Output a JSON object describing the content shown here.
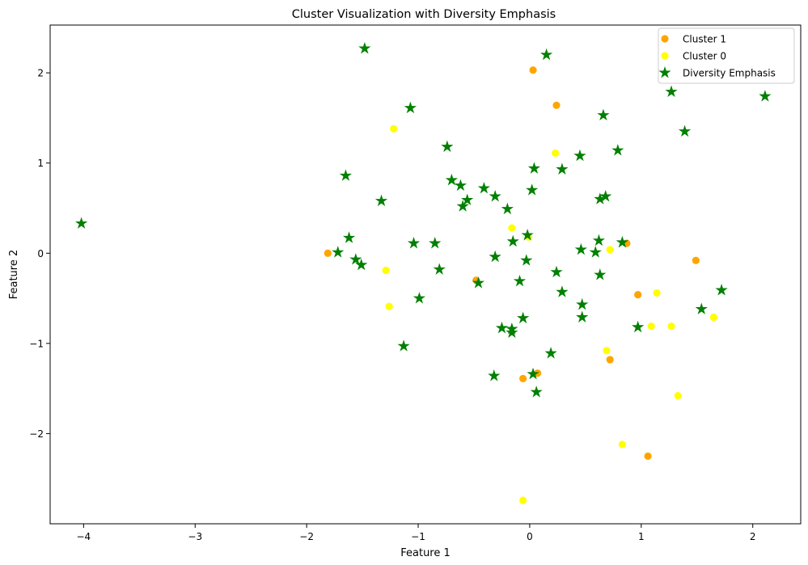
{
  "chart_data": {
    "type": "scatter",
    "title": "Cluster Visualization with Diversity Emphasis",
    "xlabel": "Feature 1",
    "ylabel": "Feature 2",
    "xlim": [
      -4.3,
      2.43
    ],
    "ylim": [
      -3.0,
      2.53
    ],
    "xticks": [
      -4,
      -3,
      -2,
      -1,
      0,
      1,
      2
    ],
    "xtick_labels": [
      "−4",
      "−3",
      "−2",
      "−1",
      "0",
      "1",
      "2"
    ],
    "yticks": [
      -2,
      -1,
      0,
      1,
      2
    ],
    "ytick_labels": [
      "−2",
      "−1",
      "0",
      "1",
      "2"
    ],
    "grid": false,
    "legend_position": "top-right",
    "series": [
      {
        "name": "Cluster 1",
        "marker": "circle",
        "color": "#ffa500",
        "points": [
          [
            0.03,
            2.03
          ],
          [
            0.24,
            1.64
          ],
          [
            -1.81,
            0.0
          ],
          [
            0.87,
            0.11
          ],
          [
            1.49,
            -0.08
          ],
          [
            -0.48,
            -0.3
          ],
          [
            0.97,
            -0.46
          ],
          [
            0.72,
            -1.18
          ],
          [
            0.07,
            -1.33
          ],
          [
            -0.06,
            -1.39
          ],
          [
            1.06,
            -2.25
          ]
        ]
      },
      {
        "name": "Cluster 0",
        "marker": "circle",
        "color": "#ffff00",
        "points": [
          [
            -1.22,
            1.38
          ],
          [
            0.23,
            1.11
          ],
          [
            -0.16,
            0.28
          ],
          [
            -0.01,
            0.18
          ],
          [
            0.72,
            0.04
          ],
          [
            -1.29,
            -0.19
          ],
          [
            -1.26,
            -0.59
          ],
          [
            1.14,
            -0.44
          ],
          [
            1.09,
            -0.81
          ],
          [
            1.27,
            -0.81
          ],
          [
            1.65,
            -0.71
          ],
          [
            0.69,
            -1.08
          ],
          [
            1.33,
            -1.58
          ],
          [
            0.83,
            -2.12
          ],
          [
            -0.06,
            -2.74
          ]
        ]
      },
      {
        "name": "Diversity Emphasis",
        "marker": "star",
        "color": "#008000",
        "points": [
          [
            -1.48,
            2.27
          ],
          [
            0.15,
            2.2
          ],
          [
            1.27,
            1.79
          ],
          [
            2.11,
            1.74
          ],
          [
            -1.07,
            1.61
          ],
          [
            0.66,
            1.53
          ],
          [
            1.39,
            1.35
          ],
          [
            -0.74,
            1.18
          ],
          [
            0.79,
            1.14
          ],
          [
            0.45,
            1.08
          ],
          [
            0.04,
            0.94
          ],
          [
            0.29,
            0.93
          ],
          [
            -1.65,
            0.86
          ],
          [
            -0.7,
            0.81
          ],
          [
            -0.62,
            0.75
          ],
          [
            -0.41,
            0.72
          ],
          [
            0.02,
            0.7
          ],
          [
            -0.31,
            0.63
          ],
          [
            0.68,
            0.63
          ],
          [
            0.63,
            0.6
          ],
          [
            -0.56,
            0.59
          ],
          [
            -1.33,
            0.58
          ],
          [
            -0.6,
            0.52
          ],
          [
            -0.2,
            0.49
          ],
          [
            -4.02,
            0.33
          ],
          [
            -1.62,
            0.17
          ],
          [
            -0.02,
            0.2
          ],
          [
            -0.15,
            0.13
          ],
          [
            0.62,
            0.14
          ],
          [
            -1.04,
            0.11
          ],
          [
            -0.85,
            0.11
          ],
          [
            0.83,
            0.12
          ],
          [
            0.46,
            0.04
          ],
          [
            0.59,
            0.01
          ],
          [
            -1.72,
            0.01
          ],
          [
            -1.56,
            -0.07
          ],
          [
            -0.31,
            -0.04
          ],
          [
            -0.03,
            -0.08
          ],
          [
            -1.51,
            -0.13
          ],
          [
            -0.81,
            -0.18
          ],
          [
            0.24,
            -0.21
          ],
          [
            0.63,
            -0.24
          ],
          [
            -0.09,
            -0.31
          ],
          [
            -0.46,
            -0.33
          ],
          [
            0.29,
            -0.43
          ],
          [
            1.72,
            -0.41
          ],
          [
            -0.99,
            -0.5
          ],
          [
            0.47,
            -0.57
          ],
          [
            1.54,
            -0.62
          ],
          [
            0.47,
            -0.71
          ],
          [
            -0.06,
            -0.72
          ],
          [
            -0.25,
            -0.83
          ],
          [
            -0.16,
            -0.84
          ],
          [
            -0.16,
            -0.88
          ],
          [
            0.97,
            -0.82
          ],
          [
            -1.13,
            -1.03
          ],
          [
            0.19,
            -1.11
          ],
          [
            -0.32,
            -1.36
          ],
          [
            0.03,
            -1.34
          ],
          [
            0.06,
            -1.54
          ]
        ]
      }
    ]
  }
}
